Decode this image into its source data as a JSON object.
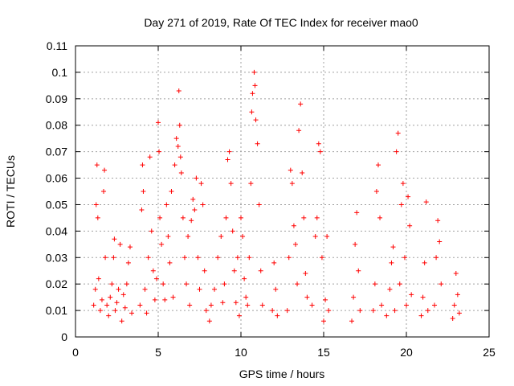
{
  "chart_data": {
    "type": "scatter",
    "title": "Day 271 of 2019, Rate Of TEC Index for receiver mao0",
    "xlabel": "GPS time / hours",
    "ylabel": "ROTI / TECUs",
    "xlim": [
      0,
      25
    ],
    "ylim": [
      0,
      0.11
    ],
    "x_ticks": [
      "0",
      "5",
      "10",
      "15",
      "20",
      "25"
    ],
    "y_ticks": [
      "0",
      "0.01",
      "0.02",
      "0.03",
      "0.04",
      "0.05",
      "0.06",
      "0.07",
      "0.08",
      "0.09",
      "0.1",
      "0.11"
    ],
    "grid": true,
    "marker": "+",
    "color": "#ff0000",
    "series": [
      {
        "name": "ROTI",
        "points": [
          [
            1.1,
            0.012
          ],
          [
            1.2,
            0.018
          ],
          [
            1.25,
            0.05
          ],
          [
            1.3,
            0.065
          ],
          [
            1.35,
            0.045
          ],
          [
            1.4,
            0.022
          ],
          [
            1.5,
            0.01
          ],
          [
            1.6,
            0.014
          ],
          [
            1.7,
            0.055
          ],
          [
            1.75,
            0.063
          ],
          [
            1.8,
            0.03
          ],
          [
            1.9,
            0.012
          ],
          [
            2.0,
            0.008
          ],
          [
            2.1,
            0.015
          ],
          [
            2.2,
            0.02
          ],
          [
            2.3,
            0.03
          ],
          [
            2.35,
            0.037
          ],
          [
            2.4,
            0.01
          ],
          [
            2.5,
            0.013
          ],
          [
            2.6,
            0.018
          ],
          [
            2.7,
            0.035
          ],
          [
            2.8,
            0.006
          ],
          [
            2.9,
            0.016
          ],
          [
            3.0,
            0.011
          ],
          [
            3.1,
            0.02
          ],
          [
            3.2,
            0.028
          ],
          [
            3.3,
            0.034
          ],
          [
            3.4,
            0.009
          ],
          [
            3.9,
            0.012
          ],
          [
            4.0,
            0.048
          ],
          [
            4.05,
            0.065
          ],
          [
            4.1,
            0.055
          ],
          [
            4.2,
            0.018
          ],
          [
            4.3,
            0.009
          ],
          [
            4.4,
            0.03
          ],
          [
            4.5,
            0.068
          ],
          [
            4.6,
            0.04
          ],
          [
            4.7,
            0.025
          ],
          [
            4.8,
            0.014
          ],
          [
            4.9,
            0.022
          ],
          [
            5.0,
            0.081
          ],
          [
            5.05,
            0.07
          ],
          [
            5.1,
            0.045
          ],
          [
            5.2,
            0.035
          ],
          [
            5.3,
            0.02
          ],
          [
            5.4,
            0.014
          ],
          [
            5.5,
            0.05
          ],
          [
            5.6,
            0.038
          ],
          [
            5.7,
            0.028
          ],
          [
            5.8,
            0.055
          ],
          [
            5.9,
            0.015
          ],
          [
            6.0,
            0.065
          ],
          [
            6.1,
            0.075
          ],
          [
            6.2,
            0.072
          ],
          [
            6.25,
            0.093
          ],
          [
            6.3,
            0.08
          ],
          [
            6.35,
            0.068
          ],
          [
            6.4,
            0.062
          ],
          [
            6.5,
            0.045
          ],
          [
            6.6,
            0.03
          ],
          [
            6.7,
            0.02
          ],
          [
            6.8,
            0.038
          ],
          [
            6.9,
            0.012
          ],
          [
            7.0,
            0.044
          ],
          [
            7.1,
            0.052
          ],
          [
            7.2,
            0.048
          ],
          [
            7.3,
            0.06
          ],
          [
            7.4,
            0.03
          ],
          [
            7.5,
            0.018
          ],
          [
            7.6,
            0.058
          ],
          [
            7.7,
            0.05
          ],
          [
            7.8,
            0.025
          ],
          [
            7.9,
            0.01
          ],
          [
            8.1,
            0.006
          ],
          [
            8.2,
            0.012
          ],
          [
            8.4,
            0.018
          ],
          [
            8.6,
            0.03
          ],
          [
            8.8,
            0.038
          ],
          [
            8.9,
            0.013
          ],
          [
            9.0,
            0.02
          ],
          [
            9.1,
            0.045
          ],
          [
            9.2,
            0.067
          ],
          [
            9.3,
            0.07
          ],
          [
            9.4,
            0.058
          ],
          [
            9.5,
            0.04
          ],
          [
            9.6,
            0.025
          ],
          [
            9.7,
            0.013
          ],
          [
            9.8,
            0.03
          ],
          [
            9.9,
            0.008
          ],
          [
            10.0,
            0.045
          ],
          [
            10.1,
            0.038
          ],
          [
            10.2,
            0.022
          ],
          [
            10.3,
            0.015
          ],
          [
            10.4,
            0.012
          ],
          [
            10.5,
            0.03
          ],
          [
            10.6,
            0.058
          ],
          [
            10.65,
            0.085
          ],
          [
            10.7,
            0.092
          ],
          [
            10.8,
            0.1
          ],
          [
            10.85,
            0.095
          ],
          [
            10.9,
            0.082
          ],
          [
            11.0,
            0.073
          ],
          [
            11.1,
            0.05
          ],
          [
            11.2,
            0.025
          ],
          [
            11.3,
            0.012
          ],
          [
            11.9,
            0.01
          ],
          [
            12.0,
            0.028
          ],
          [
            12.1,
            0.018
          ],
          [
            12.2,
            0.008
          ],
          [
            12.8,
            0.01
          ],
          [
            12.9,
            0.03
          ],
          [
            13.0,
            0.063
          ],
          [
            13.1,
            0.058
          ],
          [
            13.2,
            0.042
          ],
          [
            13.3,
            0.035
          ],
          [
            13.4,
            0.02
          ],
          [
            13.5,
            0.078
          ],
          [
            13.6,
            0.088
          ],
          [
            13.7,
            0.062
          ],
          [
            13.8,
            0.045
          ],
          [
            13.9,
            0.024
          ],
          [
            14.0,
            0.015
          ],
          [
            14.3,
            0.012
          ],
          [
            14.5,
            0.038
          ],
          [
            14.6,
            0.045
          ],
          [
            14.7,
            0.073
          ],
          [
            14.8,
            0.07
          ],
          [
            14.9,
            0.03
          ],
          [
            15.0,
            0.006
          ],
          [
            15.1,
            0.014
          ],
          [
            15.2,
            0.038
          ],
          [
            15.3,
            0.01
          ],
          [
            16.7,
            0.006
          ],
          [
            16.8,
            0.015
          ],
          [
            16.9,
            0.035
          ],
          [
            17.0,
            0.047
          ],
          [
            17.1,
            0.025
          ],
          [
            17.2,
            0.01
          ],
          [
            18.0,
            0.01
          ],
          [
            18.1,
            0.02
          ],
          [
            18.2,
            0.055
          ],
          [
            18.3,
            0.065
          ],
          [
            18.4,
            0.045
          ],
          [
            18.5,
            0.012
          ],
          [
            18.8,
            0.008
          ],
          [
            19.0,
            0.018
          ],
          [
            19.1,
            0.028
          ],
          [
            19.2,
            0.034
          ],
          [
            19.3,
            0.01
          ],
          [
            19.4,
            0.07
          ],
          [
            19.5,
            0.077
          ],
          [
            19.6,
            0.02
          ],
          [
            19.7,
            0.05
          ],
          [
            19.8,
            0.058
          ],
          [
            19.9,
            0.03
          ],
          [
            20.0,
            0.012
          ],
          [
            20.1,
            0.053
          ],
          [
            20.2,
            0.042
          ],
          [
            20.3,
            0.016
          ],
          [
            20.9,
            0.008
          ],
          [
            21.0,
            0.015
          ],
          [
            21.1,
            0.028
          ],
          [
            21.2,
            0.051
          ],
          [
            21.3,
            0.01
          ],
          [
            21.7,
            0.012
          ],
          [
            21.8,
            0.03
          ],
          [
            21.9,
            0.044
          ],
          [
            22.0,
            0.036
          ],
          [
            22.1,
            0.02
          ],
          [
            22.8,
            0.007
          ],
          [
            22.9,
            0.012
          ],
          [
            23.0,
            0.024
          ],
          [
            23.1,
            0.016
          ],
          [
            23.2,
            0.009
          ]
        ]
      }
    ]
  }
}
